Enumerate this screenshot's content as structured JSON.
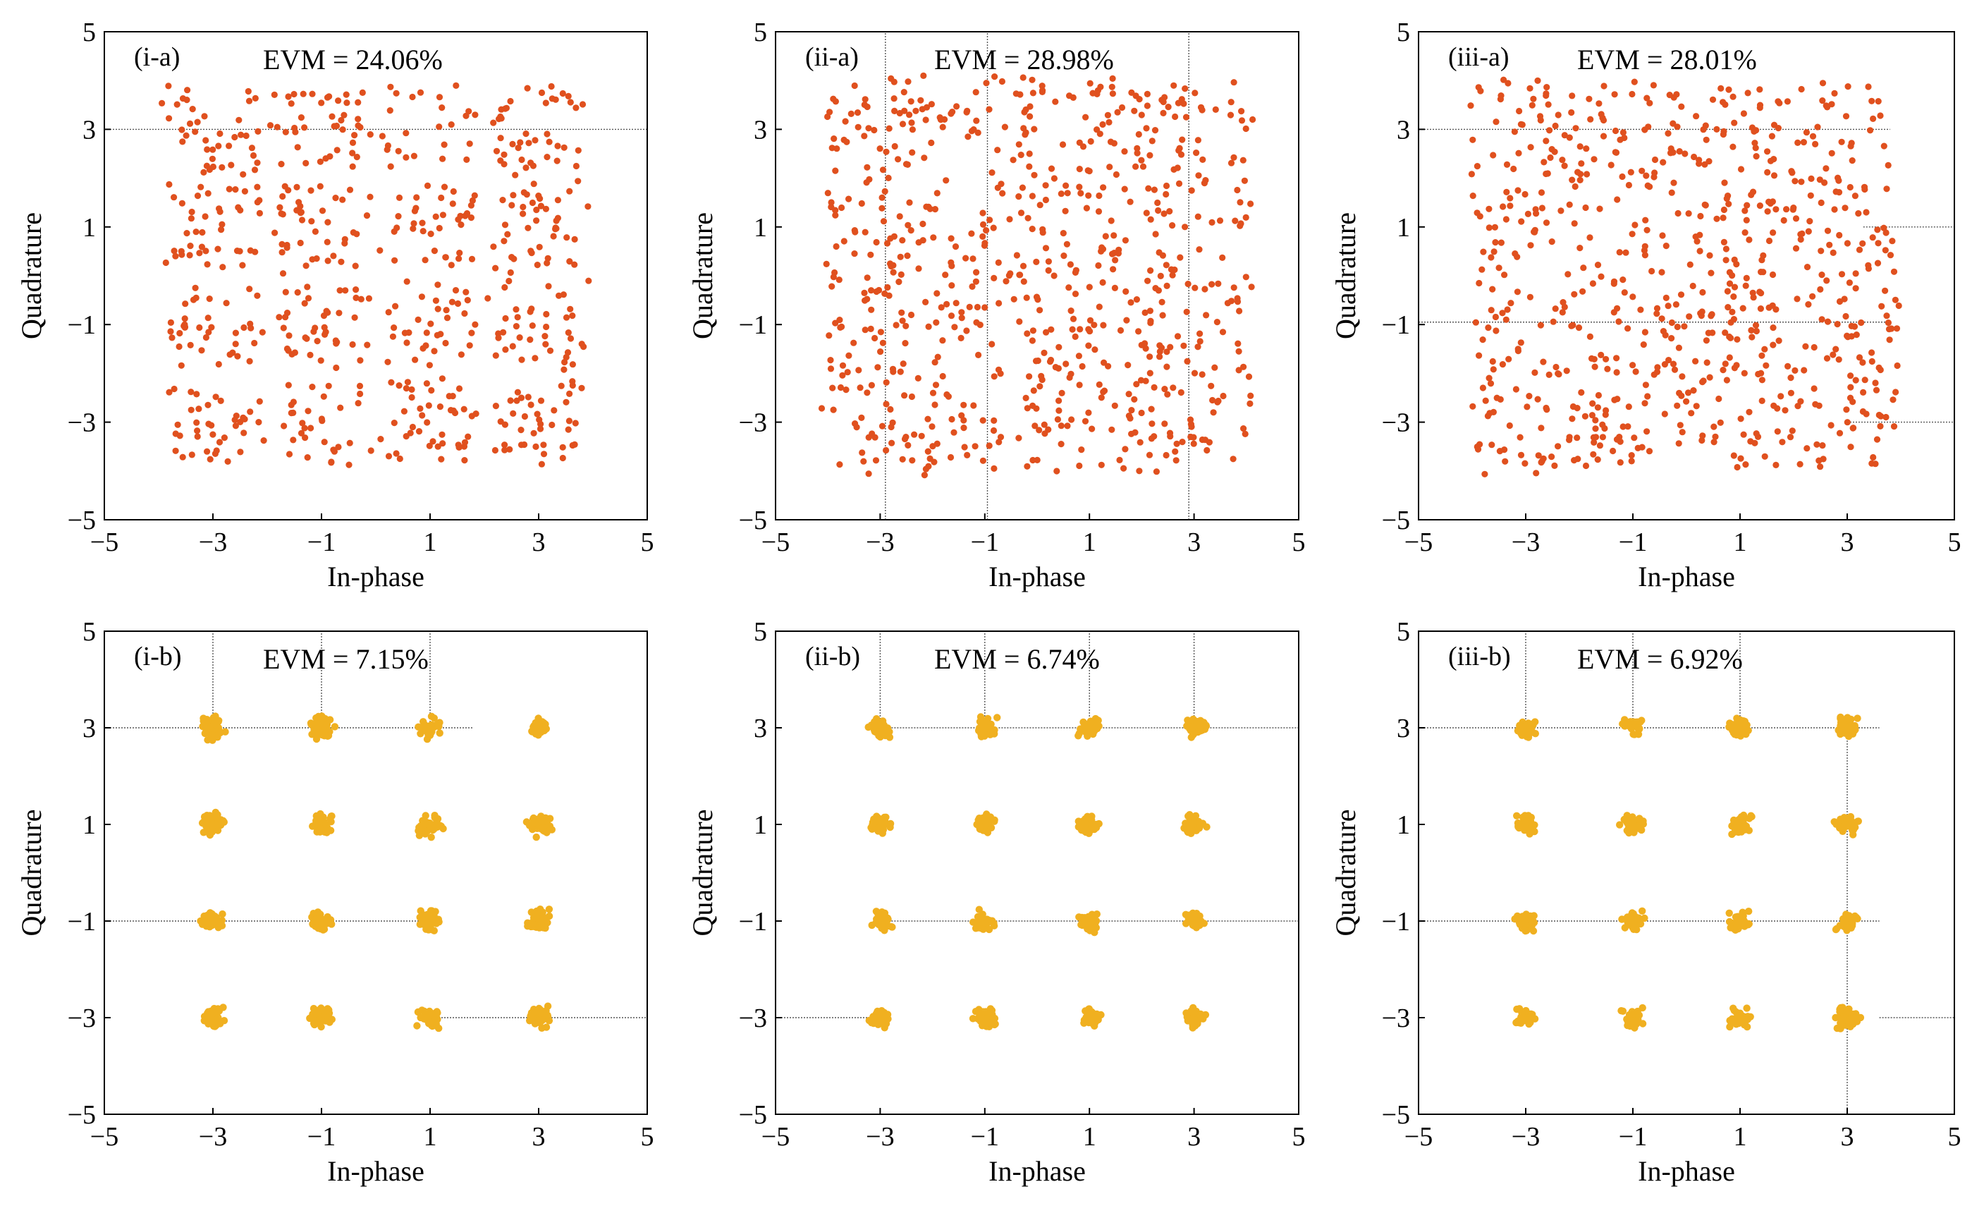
{
  "chart_data": [
    {
      "type": "scatter",
      "panel": "(i-a)",
      "evm_text": "EVM = 24.06%",
      "xlabel": "In-phase",
      "ylabel": "Quadrature",
      "xlim": [
        -5,
        5
      ],
      "ylim": [
        -5,
        5
      ],
      "xticks": [
        "−5",
        "−3",
        "−1",
        "1",
        "3",
        "5"
      ],
      "yticks": [
        "5",
        "3",
        "1",
        "−1",
        "−3",
        "−5"
      ],
      "constellation": "16-QAM",
      "ideal_levels": [
        -3,
        -1,
        1,
        3
      ],
      "n_points": 640,
      "spread": 0.62,
      "color": "#e0501e",
      "guides": [
        {
          "axis": "y",
          "at": 3,
          "from": -5,
          "to": 5
        }
      ],
      "seed": 11
    },
    {
      "type": "scatter",
      "panel": "(ii-a)",
      "evm_text": "EVM = 28.98%",
      "xlabel": "In-phase",
      "ylabel": "Quadrature",
      "xlim": [
        -5,
        5
      ],
      "ylim": [
        -5,
        5
      ],
      "xticks": [
        "−5",
        "−3",
        "−1",
        "1",
        "3",
        "5"
      ],
      "yticks": [
        "5",
        "3",
        "1",
        "−1",
        "−3",
        "−5"
      ],
      "constellation": "16-QAM",
      "ideal_levels": [
        -3,
        -1,
        1,
        3
      ],
      "n_points": 700,
      "spread": 0.75,
      "color": "#e0501e",
      "guides": [
        {
          "axis": "x",
          "at": -2.9,
          "from": -5,
          "to": 5
        },
        {
          "axis": "x",
          "at": -0.95,
          "from": -5,
          "to": 5
        },
        {
          "axis": "x",
          "at": 2.9,
          "from": -5,
          "to": 5
        }
      ],
      "seed": 23
    },
    {
      "type": "scatter",
      "panel": "(iii-a)",
      "evm_text": "EVM = 28.01%",
      "xlabel": "In-phase",
      "ylabel": "Quadrature",
      "xlim": [
        -5,
        5
      ],
      "ylim": [
        -5,
        5
      ],
      "xticks": [
        "−5",
        "−3",
        "−1",
        "1",
        "3",
        "5"
      ],
      "yticks": [
        "5",
        "3",
        "1",
        "−1",
        "−3",
        "−5"
      ],
      "constellation": "16-QAM",
      "ideal_levels": [
        -3,
        -1,
        1,
        3
      ],
      "n_points": 700,
      "spread": 0.72,
      "color": "#e0501e",
      "guides": [
        {
          "axis": "y",
          "at": 3,
          "from": -5,
          "to": 3.8
        },
        {
          "axis": "y",
          "at": -0.95,
          "from": -5,
          "to": 3.8
        },
        {
          "axis": "y",
          "at": 1,
          "from": 3.3,
          "to": 5
        },
        {
          "axis": "y",
          "at": -3,
          "from": 3,
          "to": 5
        }
      ],
      "seed": 37
    },
    {
      "type": "scatter",
      "panel": "(i-b)",
      "evm_text": "EVM = 7.15%",
      "xlabel": "In-phase",
      "ylabel": "Quadrature",
      "xlim": [
        -5,
        5
      ],
      "ylim": [
        -5,
        5
      ],
      "xticks": [
        "−5",
        "−3",
        "−1",
        "1",
        "3",
        "5"
      ],
      "yticks": [
        "5",
        "3",
        "1",
        "−1",
        "−3",
        "−5"
      ],
      "constellation": "16-QAM",
      "ideal_levels": [
        -3,
        -1,
        1,
        3
      ],
      "n_points": 720,
      "spread": 0.16,
      "color": "#f0b020",
      "guides": [
        {
          "axis": "y",
          "at": 3,
          "from": -5,
          "to": 1.8
        },
        {
          "axis": "y",
          "at": -1,
          "from": -5,
          "to": 1
        },
        {
          "axis": "y",
          "at": -3,
          "from": 1,
          "to": 5
        },
        {
          "axis": "x",
          "at": -3,
          "from": 3,
          "to": 5
        },
        {
          "axis": "x",
          "at": -1,
          "from": 3,
          "to": 5
        },
        {
          "axis": "x",
          "at": 1,
          "from": 3,
          "to": 5
        }
      ],
      "seed": 41
    },
    {
      "type": "scatter",
      "panel": "(ii-b)",
      "evm_text": "EVM = 6.74%",
      "xlabel": "In-phase",
      "ylabel": "Quadrature",
      "xlim": [
        -5,
        5
      ],
      "ylim": [
        -5,
        5
      ],
      "xticks": [
        "−5",
        "−3",
        "−1",
        "1",
        "3",
        "5"
      ],
      "yticks": [
        "5",
        "3",
        "1",
        "−1",
        "−3",
        "−5"
      ],
      "constellation": "16-QAM",
      "ideal_levels": [
        -3,
        -1,
        1,
        3
      ],
      "n_points": 720,
      "spread": 0.15,
      "color": "#f0b020",
      "guides": [
        {
          "axis": "y",
          "at": 3,
          "from": -3,
          "to": 5
        },
        {
          "axis": "y",
          "at": -1,
          "from": -3,
          "to": 5
        },
        {
          "axis": "y",
          "at": -3,
          "from": -5,
          "to": -3
        },
        {
          "axis": "x",
          "at": -3,
          "from": 3,
          "to": 5
        },
        {
          "axis": "x",
          "at": -1,
          "from": 3,
          "to": 5
        },
        {
          "axis": "x",
          "at": 1,
          "from": 3,
          "to": 5
        },
        {
          "axis": "x",
          "at": 3,
          "from": 3,
          "to": 5
        }
      ],
      "seed": 53
    },
    {
      "type": "scatter",
      "panel": "(iii-b)",
      "evm_text": "EVM = 6.92%",
      "xlabel": "In-phase",
      "ylabel": "Quadrature",
      "xlim": [
        -5,
        5
      ],
      "ylim": [
        -5,
        5
      ],
      "xticks": [
        "−5",
        "−3",
        "−1",
        "1",
        "3",
        "5"
      ],
      "yticks": [
        "5",
        "3",
        "1",
        "−1",
        "−3",
        "−5"
      ],
      "constellation": "16-QAM",
      "ideal_levels": [
        -3,
        -1,
        1,
        3
      ],
      "n_points": 720,
      "spread": 0.15,
      "color": "#f0b020",
      "guides": [
        {
          "axis": "y",
          "at": 3,
          "from": -5,
          "to": 3.6
        },
        {
          "axis": "y",
          "at": -1,
          "from": -5,
          "to": 3.6
        },
        {
          "axis": "y",
          "at": -3,
          "from": 3.6,
          "to": 5
        },
        {
          "axis": "x",
          "at": 3,
          "from": -5,
          "to": 3
        },
        {
          "axis": "x",
          "at": -3,
          "from": 3,
          "to": 5
        },
        {
          "axis": "x",
          "at": -1,
          "from": 3,
          "to": 5
        },
        {
          "axis": "x",
          "at": 1,
          "from": 3,
          "to": 5
        }
      ],
      "seed": 67
    }
  ]
}
